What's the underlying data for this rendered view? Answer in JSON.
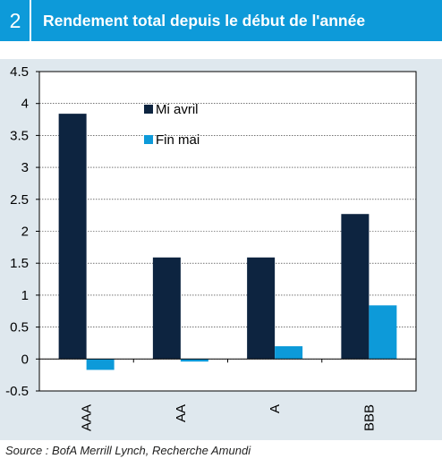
{
  "header": {
    "number": "2",
    "title": "Rendement total depuis le début de l'année"
  },
  "colors": {
    "header_bg": "#0d9ad9",
    "panel_bg": "#dfe8ee",
    "series_1": "#0d2440",
    "series_2": "#0d9ad9"
  },
  "chart_data": {
    "type": "bar",
    "title": "Rendement total depuis le début de l'année",
    "categories": [
      "AAA",
      "AA",
      "A",
      "BBB"
    ],
    "series": [
      {
        "name": "Mi avril",
        "values": [
          3.84,
          1.59,
          1.59,
          2.27
        ]
      },
      {
        "name": "Fin mai",
        "values": [
          -0.17,
          -0.04,
          0.2,
          0.84
        ]
      }
    ],
    "ylim": [
      -0.5,
      4.5
    ],
    "yticks": [
      "4.5",
      "4",
      "3.5",
      "3",
      "2.5",
      "2",
      "1.5",
      "1",
      "0.5",
      "0",
      "-0.5"
    ],
    "grid": true,
    "legend": "top-left"
  },
  "source": "Source : BofA Merrill Lynch, Recherche Amundi"
}
